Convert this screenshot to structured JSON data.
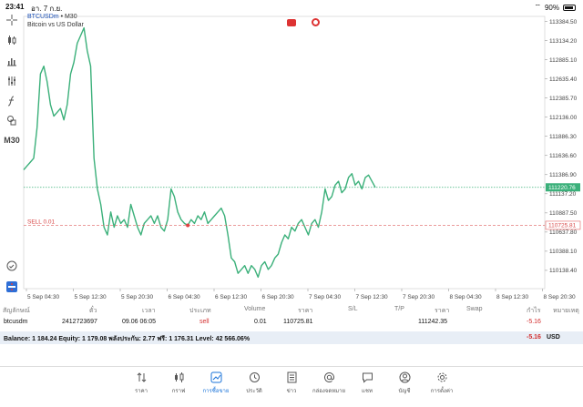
{
  "status": {
    "time": "23:41",
    "date": "อา. 7 ก.ย.",
    "battery": "90%"
  },
  "chart": {
    "symbol": "BTCUSDm",
    "timeframe_suffix": "• M30",
    "description": "Bitcoin vs US Dollar",
    "timeframe_button": "M30",
    "current_price_label": "111220.76",
    "order_price_label": "110725.81",
    "sell_line_label": "SELL 0.01",
    "colors": {
      "line": "#3bb07a",
      "bid_line": "#3bb07a",
      "sell_line": "#e06060",
      "text": "#444444"
    }
  },
  "chart_data": {
    "type": "line",
    "title": "",
    "xlabel": "",
    "ylabel": "",
    "ylim": [
      109900,
      113450
    ],
    "y_ticks": [
      "113384.50",
      "113134.20",
      "112885.10",
      "112635.40",
      "112385.70",
      "112136.00",
      "111886.30",
      "111636.60",
      "111386.90",
      "111137.20",
      "110887.50",
      "110637.80",
      "110388.10",
      "110138.40"
    ],
    "x_ticks": [
      "5 Sep 04:30",
      "5 Sep 12:30",
      "5 Sep 20:30",
      "6 Sep 04:30",
      "6 Sep 12:30",
      "6 Sep 20:30",
      "7 Sep 04:30",
      "7 Sep 12:30",
      "7 Sep 20:30",
      "8 Sep 04:30",
      "8 Sep 12:30",
      "8 Sep 20:30"
    ],
    "series": [
      {
        "values": [
          111450,
          111500,
          111550,
          111600,
          112000,
          112700,
          112800,
          112600,
          112300,
          112150,
          112200,
          112250,
          112100,
          112300,
          112700,
          112850,
          113100,
          113200,
          113300,
          113000,
          112800,
          111600,
          111200,
          111000,
          110700,
          110600,
          110900,
          110700,
          110850,
          110750,
          110800,
          110700,
          111000,
          110850,
          110700,
          110600,
          110750,
          110800,
          110850,
          110750,
          110850,
          110700,
          110650,
          110800,
          111200,
          111100,
          110900,
          110800,
          110750,
          110725,
          110800,
          110750,
          110850,
          110800,
          110900,
          110750,
          110800,
          110850,
          110900,
          110950,
          110850,
          110600,
          110300,
          110250,
          110100,
          110150,
          110200,
          110100,
          110200,
          110150,
          110050,
          110200,
          110250,
          110150,
          110200,
          110300,
          110350,
          110500,
          110600,
          110550,
          110700,
          110650,
          110750,
          110800,
          110700,
          110600,
          110750,
          110800,
          110700,
          110900,
          111200,
          111050,
          111100,
          111250,
          111300,
          111150,
          111200,
          111350,
          111400,
          111250,
          111300,
          111200,
          111350,
          111380,
          111300,
          111220
        ]
      }
    ],
    "grid": true
  },
  "trade": {
    "headers": {
      "symbol": "สัญลักษณ์",
      "ticket": "ตั๋ว",
      "time": "เวลา",
      "type": "ประเภท",
      "volume": "Volume",
      "price": "ราคา",
      "sl": "S/L",
      "tp": "T/P",
      "price2": "ราคา",
      "swap": "Swap",
      "profit": "กำไร",
      "comment": "หมายเหตุ"
    },
    "row": {
      "symbol": "btcusdm",
      "ticket": "2412723697",
      "time": "09.06 06:05",
      "type": "sell",
      "volume": "0.01",
      "open_price": "110725.81",
      "current_price": "111242.35",
      "profit": "-5.16"
    },
    "balance_text": "Balance: 1 184.24 Equity: 1 179.08 พลังประกัน: 2.77 ฟรี: 1 176.31 Level: 42 566.06%",
    "balance_profit": "-5.16",
    "currency": "USD"
  },
  "tabs": [
    {
      "label": "ราคา",
      "icon": "quotes-icon"
    },
    {
      "label": "กราฟ",
      "icon": "chart-icon"
    },
    {
      "label": "การซื้อขาย",
      "icon": "trade-icon"
    },
    {
      "label": "ประวัติ",
      "icon": "history-icon"
    },
    {
      "label": "ข่าว",
      "icon": "news-icon"
    },
    {
      "label": "กล่องจดหมาย",
      "icon": "mailbox-icon"
    },
    {
      "label": "แชท",
      "icon": "chat-icon"
    },
    {
      "label": "บัญชี",
      "icon": "account-icon"
    },
    {
      "label": "การตั้งค่า",
      "icon": "settings-icon"
    }
  ]
}
